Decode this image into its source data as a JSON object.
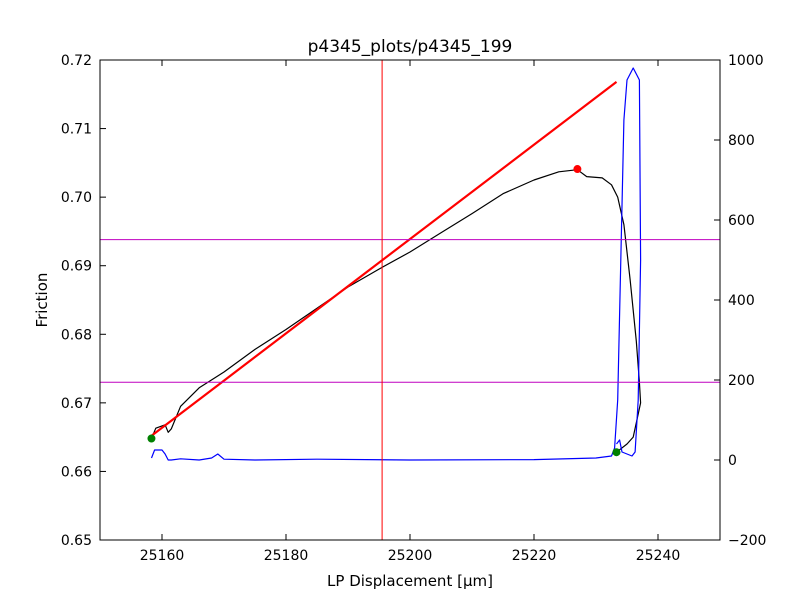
{
  "chart_data": {
    "type": "line",
    "title": "p4345_plots/p4345_199",
    "xlabel": "LP Displacement [μm]",
    "ylabel": "Friction",
    "xlim": [
      25150,
      25250
    ],
    "ylim": [
      0.65,
      0.72
    ],
    "y2lim": [
      -200,
      1000
    ],
    "x_ticks": [
      "25160",
      "25180",
      "25200",
      "25220",
      "25240"
    ],
    "y_ticks": [
      "0.65",
      "0.66",
      "0.67",
      "0.68",
      "0.69",
      "0.70",
      "0.71",
      "0.72"
    ],
    "y2_ticks": [
      "−200",
      "0",
      "200",
      "400",
      "600",
      "800",
      "1000"
    ],
    "grid": false,
    "colors": {
      "friction": "#000000",
      "fit": "#ff0000",
      "secondary": "#0000ff",
      "guides": "#bf00bf",
      "vline": "#ff0000",
      "start_end_markers": "#008000",
      "peak_marker": "#ff0000"
    },
    "series": [
      {
        "axis": "left",
        "color": "#000000",
        "x": [
          25158.3,
          25159,
          25160.5,
          25161,
          25161.5,
          25163,
          25166,
          25170,
          25175,
          25180,
          25185,
          25190,
          25195,
          25200,
          25205,
          25210,
          25215,
          25220,
          25224,
          25227,
          25228.5,
          25231,
          25232.5,
          25233.5,
          25234.5,
          25235.5,
          25236.5,
          25237,
          25237.2,
          25236,
          25235,
          25233.3
        ],
        "y": [
          0.6648,
          0.6663,
          0.6668,
          0.6657,
          0.6662,
          0.6695,
          0.6722,
          0.6745,
          0.6778,
          0.6807,
          0.6838,
          0.6869,
          0.6895,
          0.692,
          0.6948,
          0.6976,
          0.7005,
          0.7025,
          0.7037,
          0.704,
          0.703,
          0.7028,
          0.7018,
          0.7,
          0.696,
          0.688,
          0.679,
          0.673,
          0.67,
          0.665,
          0.664,
          0.6628
        ]
      },
      {
        "axis": "left",
        "color": "#ff0000",
        "x": [
          25158.3,
          25233.3
        ],
        "y": [
          0.6652,
          0.7168
        ]
      },
      {
        "axis": "right",
        "color": "#0000ff",
        "x": [
          25158.3,
          25158.8,
          25160,
          25160.5,
          25161,
          25161.5,
          25163,
          25166,
          25168,
          25169,
          25170,
          25175,
          25185,
          25200,
          25220,
          25230,
          25232.5,
          25233,
          25233.5,
          25234,
          25234.5,
          25235,
          25236,
          25237,
          25237.2,
          25236.8,
          25236.3,
          25235.8,
          25234.2,
          25233.8,
          25233.3
        ],
        "y": [
          5,
          25,
          25,
          15,
          0,
          0,
          3,
          0,
          5,
          15,
          2,
          0,
          2,
          0,
          1,
          5,
          10,
          30,
          150,
          500,
          850,
          950,
          980,
          950,
          500,
          150,
          20,
          10,
          20,
          50,
          40
        ]
      }
    ],
    "hlines": [
      0.6938,
      0.673
    ],
    "vlines": [
      25195.5
    ],
    "markers": [
      {
        "x": 25158.3,
        "y": 0.6648,
        "color": "#008000"
      },
      {
        "x": 25233.3,
        "y": 0.6628,
        "color": "#008000"
      },
      {
        "x": 25227,
        "y": 0.7041,
        "color": "#ff0000"
      }
    ]
  }
}
